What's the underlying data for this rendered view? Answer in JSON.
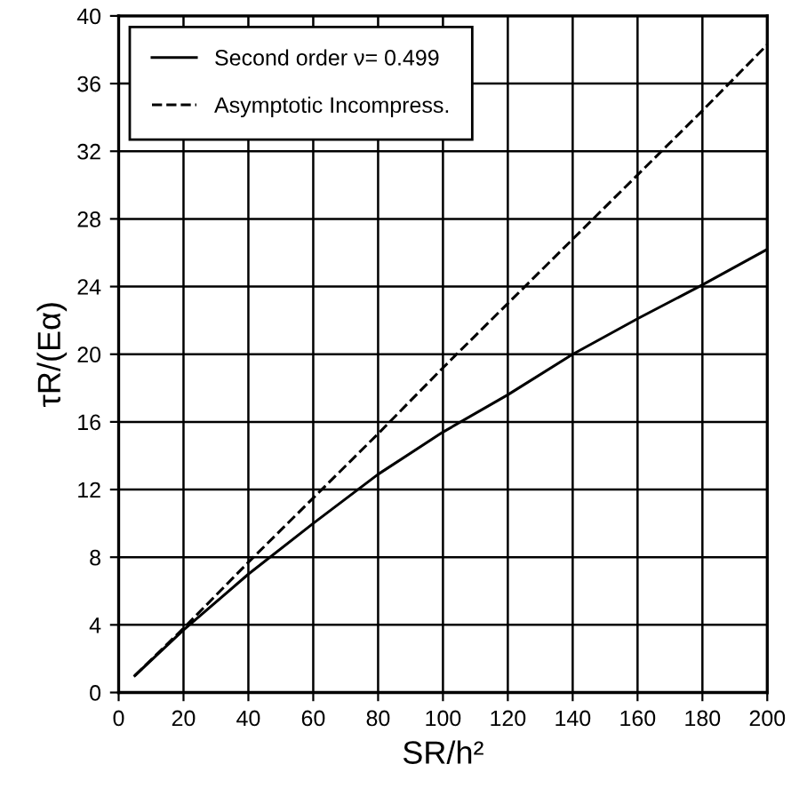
{
  "chart_data": {
    "type": "line",
    "xlabel": "SR/h²",
    "ylabel": "τR/(Eα)",
    "xlim": [
      0,
      200
    ],
    "xticks": [
      0,
      20,
      40,
      60,
      80,
      100,
      120,
      140,
      160,
      180,
      200
    ],
    "ylim": [
      0,
      40
    ],
    "yticks": [
      0,
      4,
      8,
      12,
      16,
      20,
      24,
      28,
      32,
      36,
      40
    ],
    "grid": true,
    "legend": "top left",
    "marker": "none",
    "series": [
      {
        "name": "Second order ν= 0.499",
        "color": "#000000",
        "line_style": "solid",
        "x": [
          5,
          20,
          40,
          60,
          80,
          100,
          120,
          140,
          160,
          180,
          200
        ],
        "values": [
          1,
          3.7,
          7,
          10,
          12.9,
          15.4,
          17.6,
          20,
          22.1,
          24.1,
          26.2
        ]
      },
      {
        "name": "Asymptotic Incompress.",
        "color": "#000000",
        "line_style": "dashed",
        "x": [
          5,
          20,
          40,
          60,
          80,
          100,
          120,
          140,
          160,
          180,
          200
        ],
        "values": [
          1,
          3.8,
          7.7,
          11.5,
          15.3,
          19.2,
          23,
          26.8,
          30.6,
          34.4,
          38.3
        ]
      }
    ]
  }
}
